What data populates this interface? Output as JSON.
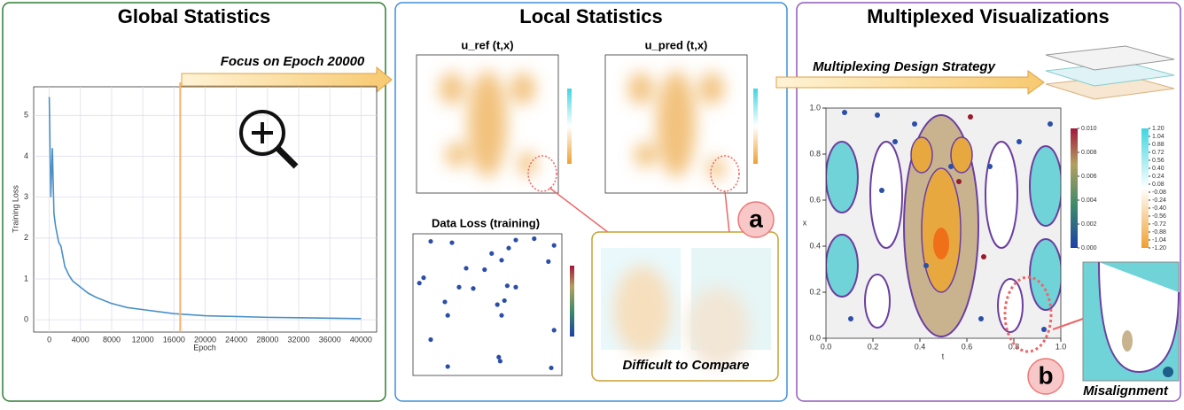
{
  "panels": [
    {
      "title": "Global Statistics"
    },
    {
      "title": "Local Statistics"
    },
    {
      "title": "Multiplexed Visualizations"
    }
  ],
  "annotations": {
    "focus": "Focus on Epoch 20000",
    "multiplex": "Multiplexing Design Strategy",
    "compare": "Difficult to Compare",
    "misalign": "Misalignment",
    "a": "a",
    "b": "b"
  },
  "loss_chart": {
    "type": "line",
    "x_label": "Epoch",
    "y_label": "Training Loss",
    "x": [
      0,
      200,
      400,
      600,
      800,
      1200,
      1500,
      2000,
      2500,
      3000,
      4000,
      5000,
      6000,
      8000,
      10000,
      12000,
      14000,
      16000,
      20000,
      24000,
      28000,
      32000,
      36000,
      40000
    ],
    "values": [
      5.45,
      3.0,
      4.2,
      2.6,
      2.3,
      1.9,
      1.8,
      1.3,
      1.1,
      0.95,
      0.8,
      0.65,
      0.55,
      0.4,
      0.3,
      0.25,
      0.2,
      0.15,
      0.1,
      0.08,
      0.06,
      0.05,
      0.04,
      0.03
    ],
    "color": "#4a90c8",
    "xlim": [
      -2000,
      42000
    ],
    "ylim": [
      -0.3,
      5.7
    ],
    "xticks": [
      0,
      4000,
      8000,
      12000,
      16000,
      20000,
      24000,
      28000,
      32000,
      36000,
      40000
    ],
    "yticks": [
      0,
      1,
      2,
      3,
      4,
      5
    ],
    "highlight_x": 16800,
    "highlight_color": "#f5b26b"
  },
  "heatmaps": [
    {
      "title": "u_ref (t,x)"
    },
    {
      "title": "u_pred (t,x)"
    }
  ],
  "data_loss": {
    "type": "scatter",
    "title": "Data Loss (training)",
    "color": "#2b4ea8",
    "xlim": [
      0,
      1
    ],
    "ylim": [
      0,
      1
    ],
    "x": [
      0.1,
      0.25,
      0.83,
      0.7,
      0.97,
      0.65,
      0.53,
      0.6,
      0.05,
      0.02,
      0.35,
      0.48,
      0.93,
      0.3,
      0.4,
      0.7,
      0.64,
      0.2,
      0.22,
      0.62,
      0.57,
      0.6,
      0.97,
      0.1,
      0.58,
      0.59,
      0.22,
      0.95
    ],
    "y": [
      0.97,
      0.96,
      0.99,
      0.98,
      0.94,
      0.92,
      0.88,
      0.83,
      0.7,
      0.66,
      0.77,
      0.76,
      0.82,
      0.63,
      0.62,
      0.63,
      0.64,
      0.52,
      0.42,
      0.53,
      0.5,
      0.42,
      0.31,
      0.24,
      0.11,
      0.08,
      0.04,
      0.03
    ]
  },
  "contour": {
    "x_label": "t",
    "y_label": "x",
    "xlim": [
      0,
      1
    ],
    "ylim": [
      0,
      1
    ],
    "xticks": [
      {
        "value": 0,
        "label": "0.0"
      },
      {
        "value": 0.2,
        "label": "0.2"
      },
      {
        "value": 0.4,
        "label": "0.4"
      },
      {
        "value": 0.6,
        "label": "0.6"
      },
      {
        "value": 0.8,
        "label": "0.8"
      },
      {
        "value": 1,
        "label": "1.0"
      }
    ],
    "yticks": [
      {
        "value": 0,
        "label": "0.0"
      },
      {
        "value": 0.2,
        "label": "0.2"
      },
      {
        "value": 0.4,
        "label": "0.4"
      },
      {
        "value": 0.6,
        "label": "0.6"
      },
      {
        "value": 0.8,
        "label": "0.8"
      },
      {
        "value": 1,
        "label": "1.0"
      }
    ],
    "colorbars": [
      {
        "ticks": [
          {
            "value": 0,
            "label": "0.000"
          },
          {
            "value": 0.002,
            "label": "0.002"
          },
          {
            "value": 0.004,
            "label": "0.004"
          },
          {
            "value": 0.006,
            "label": "0.006"
          },
          {
            "value": 0.008,
            "label": "0.008"
          },
          {
            "value": 0.01,
            "label": "0.010"
          }
        ]
      },
      {
        "ticks": [
          {
            "value": 1.2,
            "label": "1.20"
          },
          {
            "value": 1.04,
            "label": "1.04"
          },
          {
            "value": 0.88,
            "label": "0.88"
          },
          {
            "value": 0.72,
            "label": "0.72"
          },
          {
            "value": 0.56,
            "label": "0.56"
          },
          {
            "value": 0.4,
            "label": "0.40"
          },
          {
            "value": 0.24,
            "label": "0.24"
          },
          {
            "value": 0.08,
            "label": "0.08"
          },
          {
            "value": -0.08,
            "label": "-0.08"
          },
          {
            "value": -0.24,
            "label": "-0.24"
          },
          {
            "value": -0.4,
            "label": "-0.40"
          },
          {
            "value": -0.56,
            "label": "-0.56"
          },
          {
            "value": -0.72,
            "label": "-0.72"
          },
          {
            "value": -0.88,
            "label": "-0.88"
          },
          {
            "value": -1.04,
            "label": "-1.04"
          },
          {
            "value": -1.2,
            "label": "-1.20"
          }
        ]
      }
    ]
  }
}
